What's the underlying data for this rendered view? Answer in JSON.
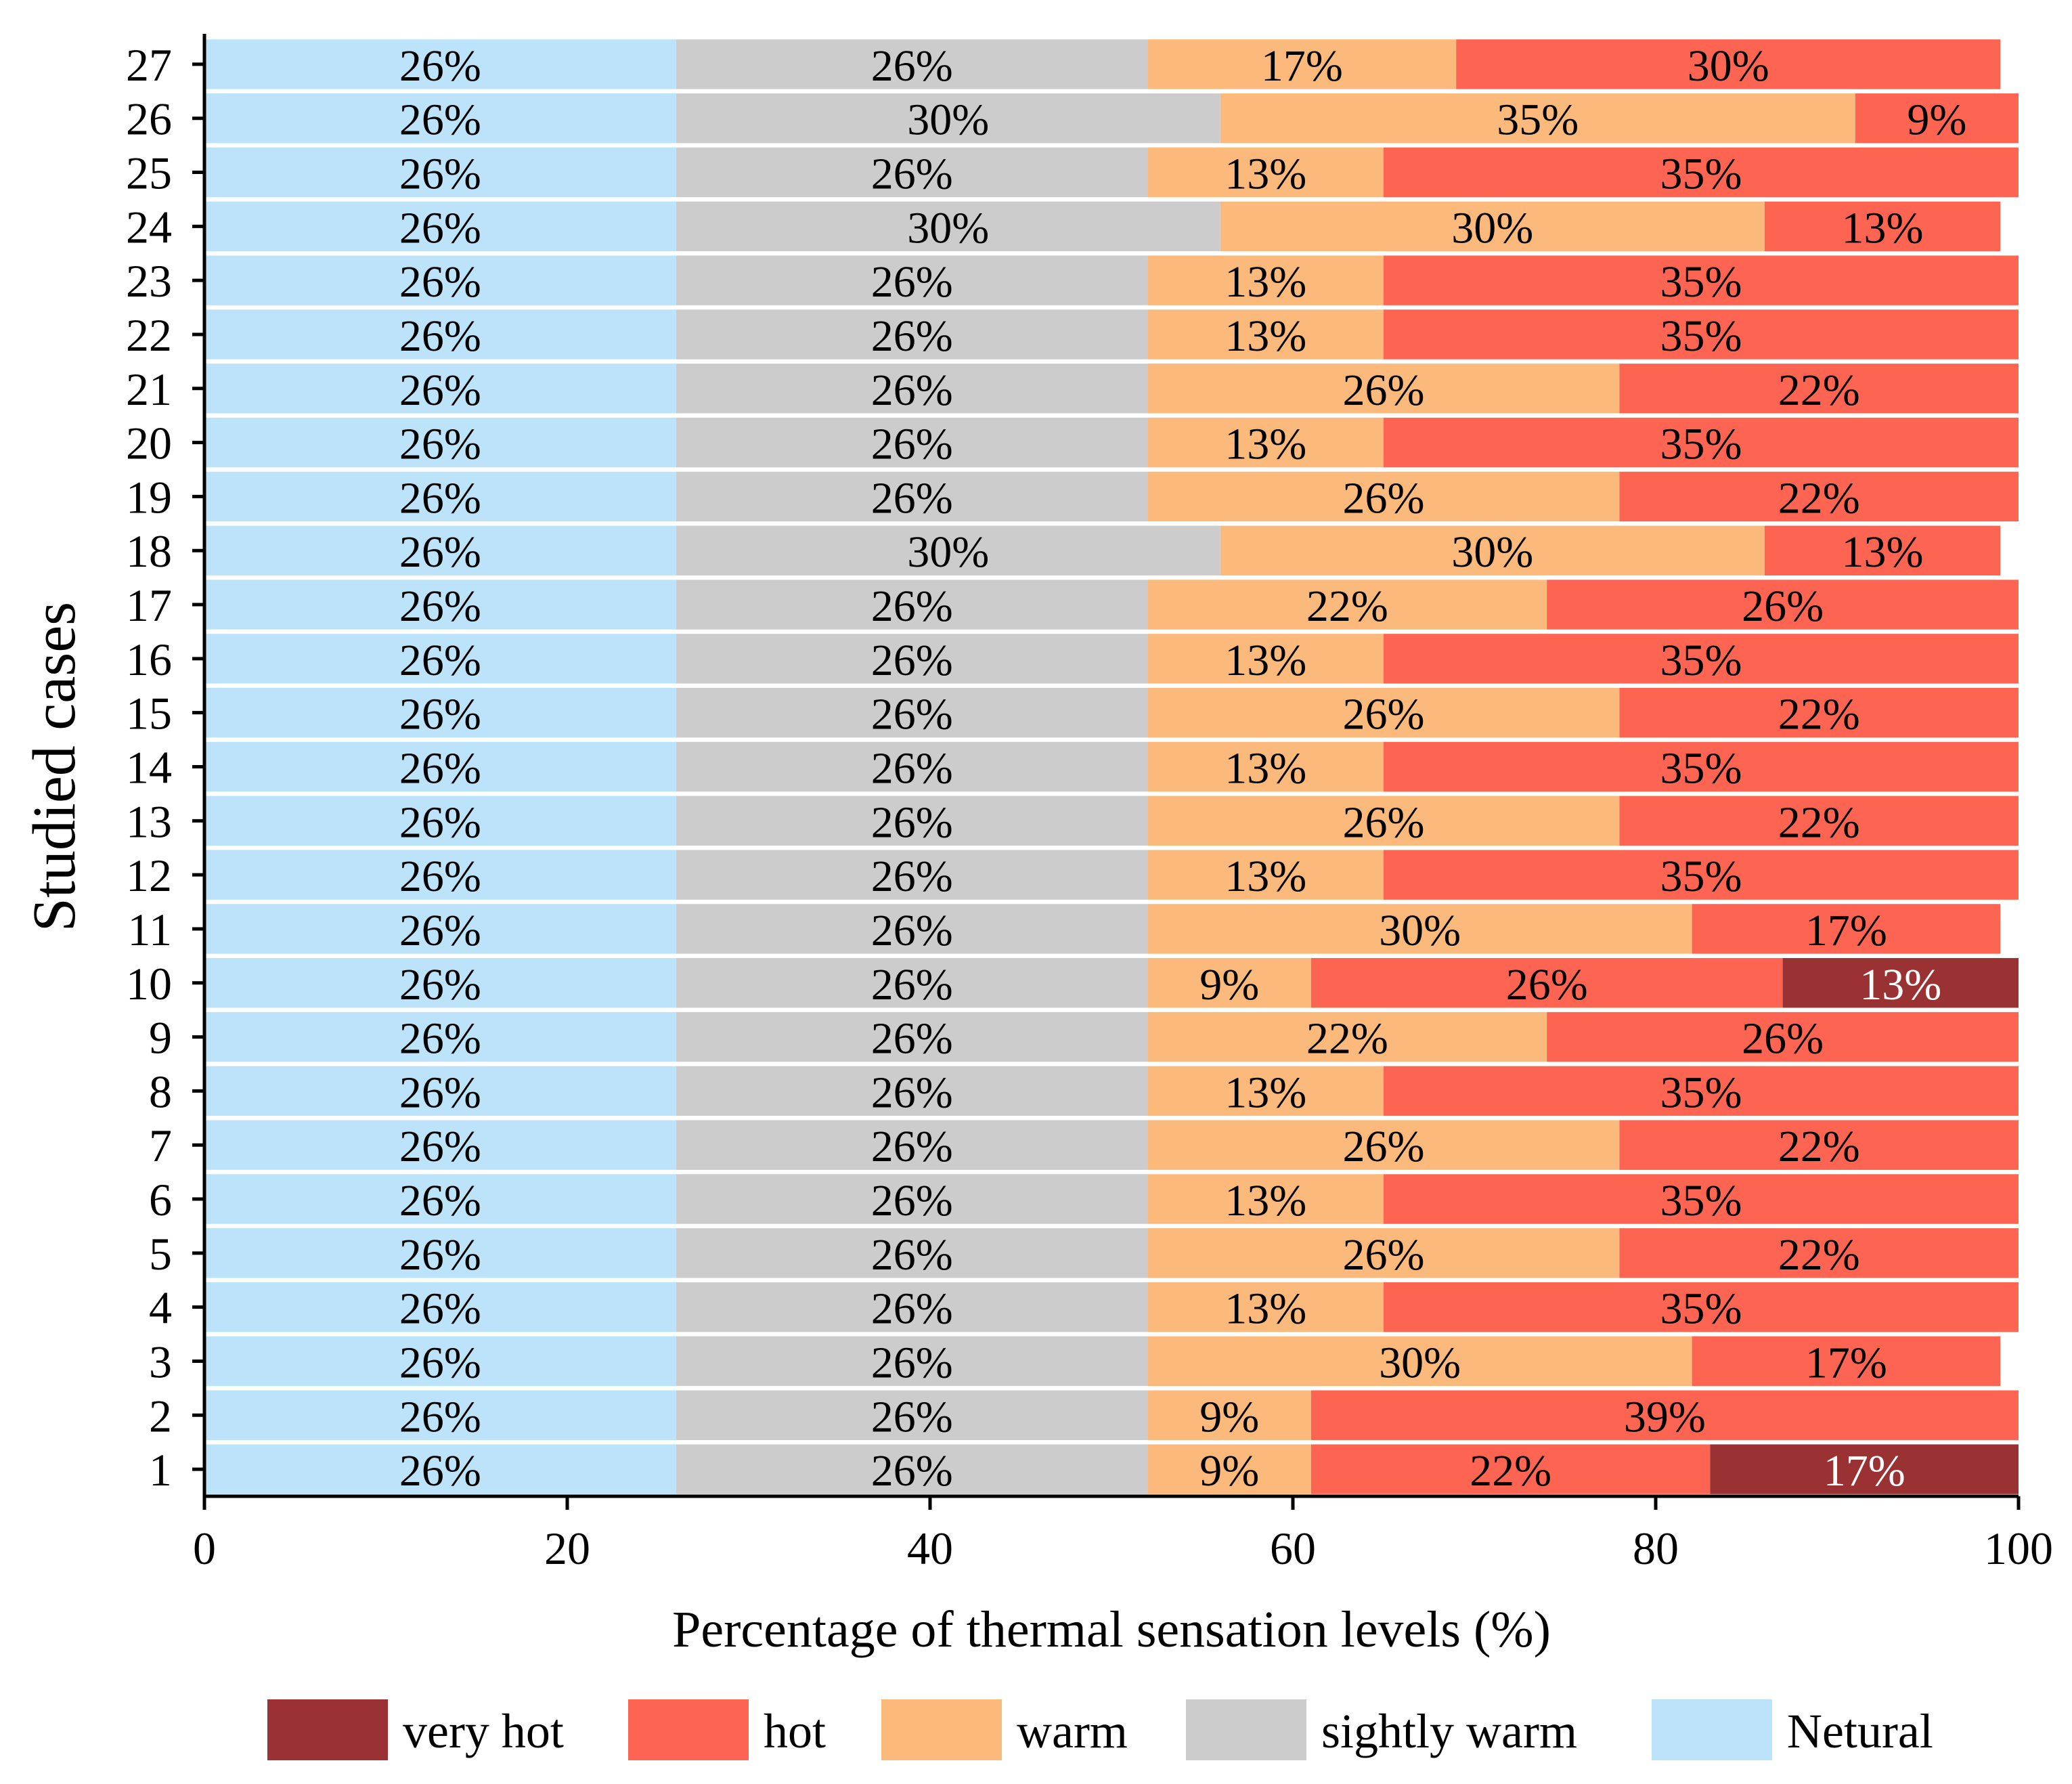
{
  "chart_data": {
    "type": "bar",
    "orientation": "horizontal",
    "stacked": true,
    "xlabel": "Percentage of thermal sensation levels (%)",
    "ylabel": "Studied cases",
    "xlim": [
      0,
      100
    ],
    "xticks": [
      "0",
      "20",
      "40",
      "60",
      "80",
      "100"
    ],
    "categories": [
      "1",
      "2",
      "3",
      "4",
      "5",
      "6",
      "7",
      "8",
      "9",
      "10",
      "11",
      "12",
      "13",
      "14",
      "15",
      "16",
      "17",
      "18",
      "19",
      "20",
      "21",
      "22",
      "23",
      "24",
      "25",
      "26",
      "27"
    ],
    "series": [
      {
        "name": "Netural",
        "color": "#bde3fa",
        "label_color": "#000000",
        "values": [
          26,
          26,
          26,
          26,
          26,
          26,
          26,
          26,
          26,
          26,
          26,
          26,
          26,
          26,
          26,
          26,
          26,
          26,
          26,
          26,
          26,
          26,
          26,
          26,
          26,
          26,
          26
        ]
      },
      {
        "name": "sightly warm",
        "color": "#cccccc",
        "label_color": "#000000",
        "values": [
          26,
          26,
          26,
          26,
          26,
          26,
          26,
          26,
          26,
          26,
          26,
          26,
          26,
          26,
          26,
          26,
          26,
          30,
          26,
          26,
          26,
          26,
          26,
          30,
          26,
          30,
          26
        ]
      },
      {
        "name": "warm",
        "color": "#fbb97c",
        "label_color": "#000000",
        "values": [
          9,
          9,
          30,
          13,
          26,
          13,
          26,
          13,
          22,
          9,
          30,
          13,
          26,
          13,
          26,
          13,
          22,
          30,
          26,
          13,
          26,
          13,
          13,
          30,
          13,
          35,
          17
        ]
      },
      {
        "name": "hot",
        "color": "#fe6452",
        "label_color": "#000000",
        "values": [
          22,
          39,
          17,
          35,
          22,
          35,
          22,
          35,
          26,
          26,
          17,
          35,
          22,
          35,
          22,
          35,
          26,
          13,
          22,
          35,
          22,
          35,
          35,
          13,
          35,
          9,
          30
        ]
      },
      {
        "name": "very hot",
        "color": "#9a3233",
        "label_color": "#ffffff",
        "values": [
          17,
          0,
          0,
          0,
          0,
          0,
          0,
          0,
          0,
          13,
          0,
          0,
          0,
          0,
          0,
          0,
          0,
          0,
          0,
          0,
          0,
          0,
          0,
          0,
          0,
          0,
          0
        ]
      }
    ],
    "value_label_suffix": "%",
    "legend": {
      "position": "bottom",
      "order": [
        "very hot",
        "hot",
        "warm",
        "sightly warm",
        "Netural"
      ]
    }
  }
}
